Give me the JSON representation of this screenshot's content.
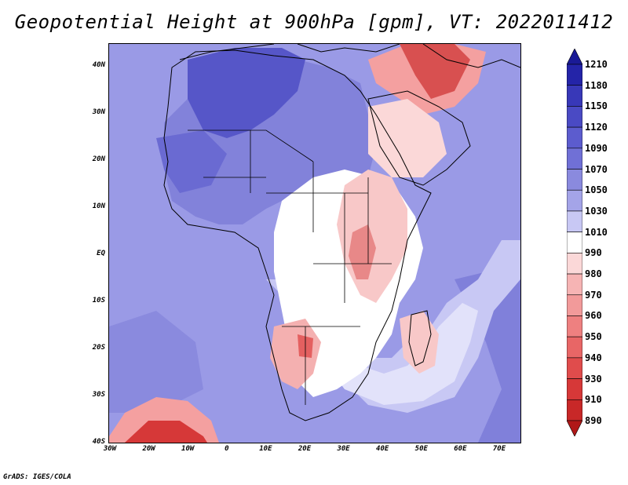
{
  "title": "Geopotential Height at 900hPa [gpm], VT: 2022011412",
  "footer": "GrADS: IGES/COLA",
  "map": {
    "lat_labels": [
      "40N",
      "30N",
      "20N",
      "10N",
      "EQ",
      "10S",
      "20S",
      "30S",
      "40S"
    ],
    "lon_labels": [
      "30W",
      "20W",
      "10W",
      "0",
      "10E",
      "20E",
      "30E",
      "40E",
      "50E",
      "60E",
      "70E"
    ]
  },
  "colorbar": {
    "levels": [
      "1210",
      "1180",
      "1150",
      "1120",
      "1090",
      "1070",
      "1050",
      "1030",
      "1010",
      "990",
      "980",
      "970",
      "960",
      "950",
      "940",
      "930",
      "910",
      "890"
    ],
    "colors": [
      "#1a1a96",
      "#2424a8",
      "#3838b8",
      "#4a4ac4",
      "#5c5cce",
      "#7070d6",
      "#8a8ade",
      "#a4a4e8",
      "#c8c8f4",
      "#ffffff",
      "#fbd8d8",
      "#f6b4b4",
      "#f29a9a",
      "#ee8080",
      "#e86666",
      "#e04c4c",
      "#d63838",
      "#c82828",
      "#b01818"
    ]
  },
  "palette": {
    "ocean_mid": "#9a9ae6",
    "ocean_light": "#c8c8f4",
    "ocean_pale": "#e2e2fa",
    "land_blue": "#8282da",
    "land_dark": "#5656c8",
    "land_white": "#ffffff",
    "low_pink": "#f8c8c8",
    "low_red": "#e46060",
    "low_dark": "#c43030",
    "outline": "#000000"
  }
}
